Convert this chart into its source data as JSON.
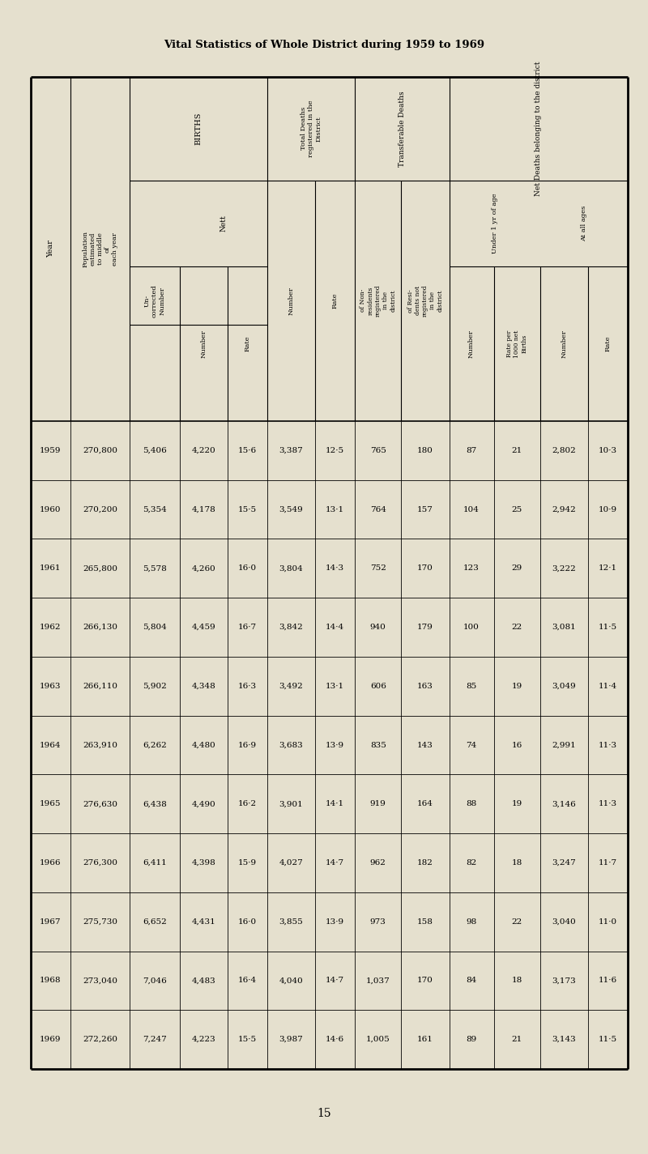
{
  "title": "Vital Statistics of Whole District during 1959 to 1969",
  "page_number": "15",
  "background_color": "#e5e0ce",
  "years": [
    "1959",
    "1960",
    "1961",
    "1962",
    "1963",
    "1964",
    "1965",
    "1966",
    "1967",
    "1968",
    "1969"
  ],
  "population": [
    "270,800",
    "270,200",
    "265,800",
    "266,130",
    "266,110",
    "263,910",
    "276,630",
    "276,300",
    "275,730",
    "273,040",
    "272,260"
  ],
  "births_uncorrected": [
    "5,406",
    "5,354",
    "5,578",
    "5,804",
    "5,902",
    "6,262",
    "6,438",
    "6,411",
    "6,652",
    "7,046",
    "7,247"
  ],
  "births_nett_number": [
    "4,220",
    "4,178",
    "4,260",
    "4,459",
    "4,348",
    "4,480",
    "4,490",
    "4,398",
    "4,431",
    "4,483",
    "4,223"
  ],
  "births_nett_rate": [
    "15·6",
    "15·5",
    "16·0",
    "16·7",
    "16·3",
    "16·9",
    "16·2",
    "15·9",
    "16·0",
    "16·4",
    "15·5"
  ],
  "total_deaths_number": [
    "3,387",
    "3,549",
    "3,804",
    "3,842",
    "3,492",
    "3,683",
    "3,901",
    "4,027",
    "3,855",
    "4,040",
    "3,987"
  ],
  "total_deaths_rate": [
    "12·5",
    "13·1",
    "14·3",
    "14·4",
    "13·1",
    "13·9",
    "14·1",
    "14·7",
    "13·9",
    "14·7",
    "14·6"
  ],
  "transferable_non_residents": [
    "765",
    "764",
    "752",
    "940",
    "606",
    "835",
    "919",
    "962",
    "973",
    "1,037",
    "1,005"
  ],
  "transferable_residents_not": [
    "180",
    "157",
    "170",
    "179",
    "163",
    "143",
    "164",
    "182",
    "158",
    "170",
    "161"
  ],
  "net_deaths_under1_number": [
    "87",
    "104",
    "123",
    "100",
    "85",
    "74",
    "88",
    "82",
    "98",
    "84",
    "89"
  ],
  "net_deaths_under1_rate": [
    "21",
    "25",
    "29",
    "22",
    "19",
    "16",
    "19",
    "18",
    "22",
    "18",
    "21"
  ],
  "net_deaths_all_number": [
    "2,802",
    "2,942",
    "3,222",
    "3,081",
    "3,049",
    "2,991",
    "3,146",
    "3,247",
    "3,040",
    "3,173",
    "3,143"
  ],
  "net_deaths_all_rate": [
    "10·3",
    "10·9",
    "12·1",
    "11·5",
    "11·4",
    "11·3",
    "11·3",
    "11·7",
    "11·0",
    "11·6",
    "11·5"
  ]
}
